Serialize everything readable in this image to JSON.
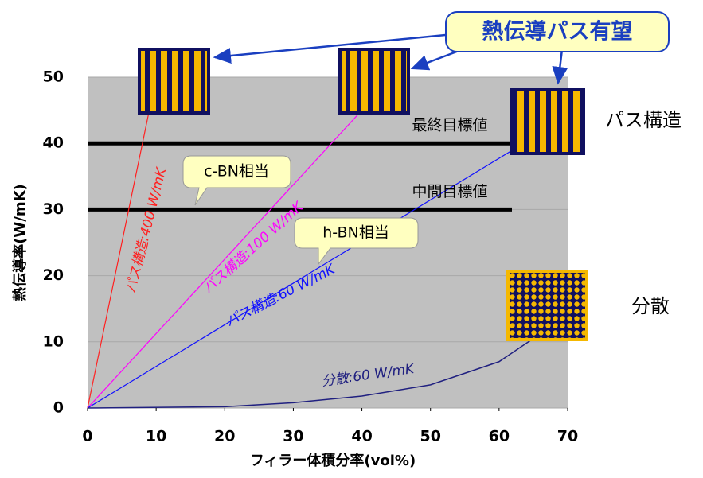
{
  "chart_data": {
    "type": "line",
    "x_label": "フィラー体積分率(vol%)",
    "y_label": "熱伝導率(W/mK)",
    "xlim": [
      0,
      70
    ],
    "xticks": [
      0,
      10,
      20,
      30,
      40,
      50,
      60,
      70
    ],
    "ylim": [
      0,
      50
    ],
    "yticks": [
      0,
      10,
      20,
      30,
      40,
      50
    ],
    "grid": true,
    "series": [
      {
        "name": "パス構造:400 W/mK",
        "color": "#ff2020",
        "x": [
          0,
          9
        ],
        "values": [
          0,
          45
        ]
      },
      {
        "name": "パス構造:100 W/mK",
        "color": "#ff00ff",
        "x": [
          0,
          40
        ],
        "values": [
          0,
          45
        ]
      },
      {
        "name": "パス構造:60 W/mK",
        "color": "#1010ff",
        "x": [
          0,
          62
        ],
        "values": [
          0,
          39
        ]
      },
      {
        "name": "分散:60 W/mK",
        "color": "#202080",
        "x": [
          0,
          20,
          30,
          40,
          50,
          60,
          65
        ],
        "values": [
          0,
          0.2,
          0.8,
          1.8,
          3.5,
          7,
          10.5
        ]
      }
    ],
    "reference_lines": [
      {
        "value": 40,
        "label": "最終目標値"
      },
      {
        "value": 30,
        "label": "中間目標値"
      }
    ],
    "annotations": [
      "熱伝導パス有望",
      "c-BN相当",
      "h-BN相当",
      "パス構造",
      "分散"
    ]
  }
}
